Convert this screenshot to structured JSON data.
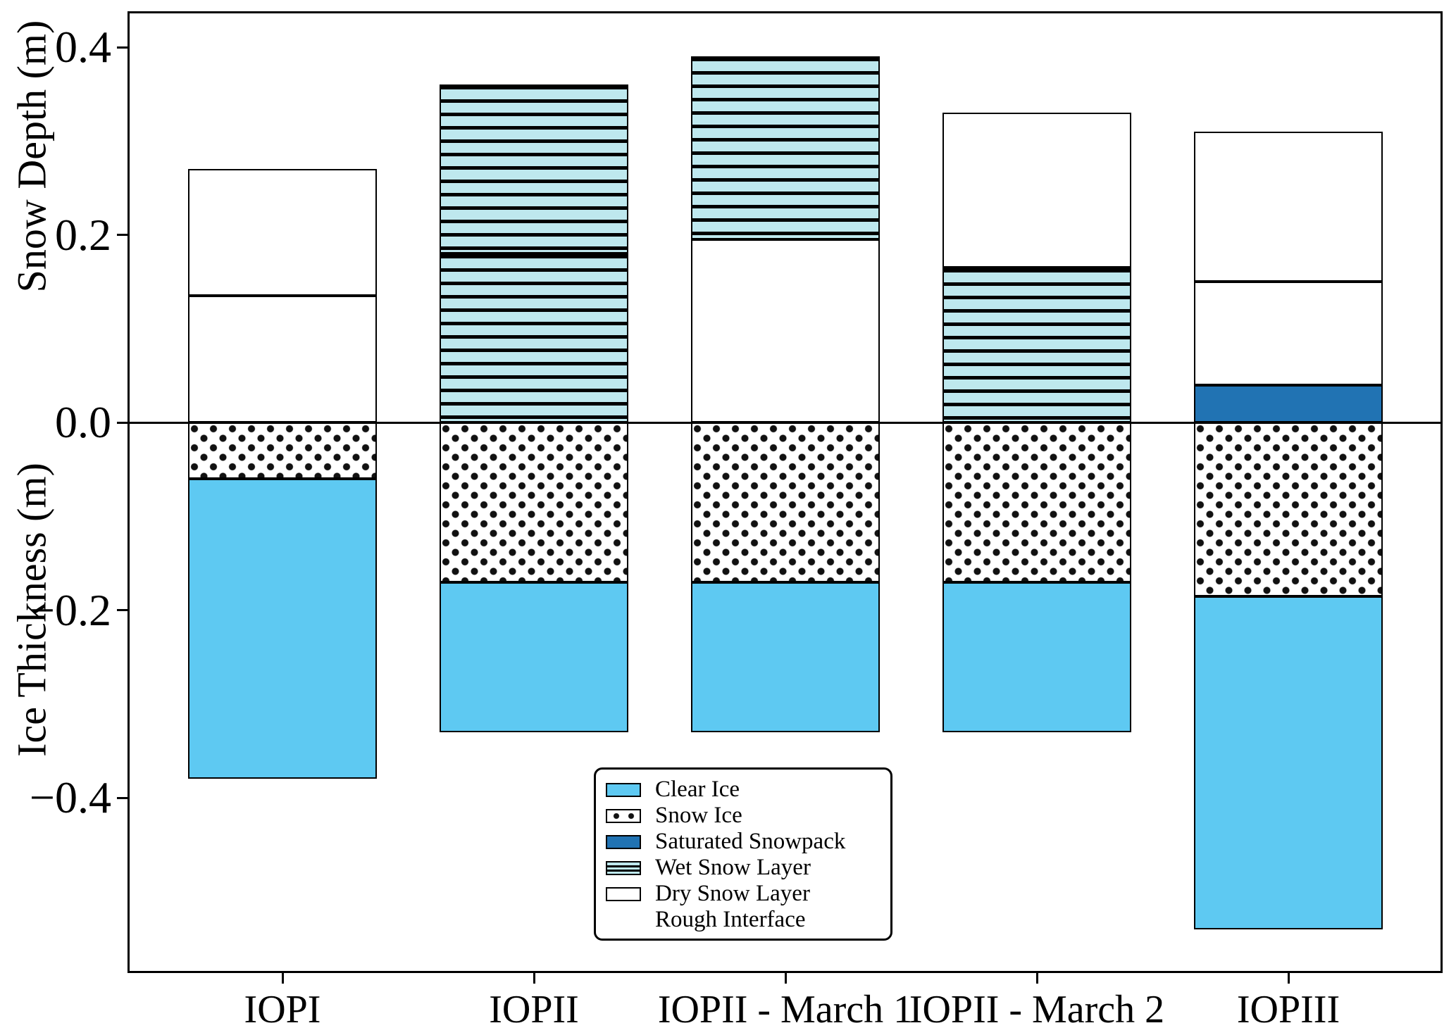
{
  "axes": {
    "y_top_label": "Snow Depth (m)",
    "y_bottom_label": "Ice Thickness (m)",
    "y_ticks": [
      {
        "v": 0.4,
        "label": "0.4"
      },
      {
        "v": 0.2,
        "label": "0.2"
      },
      {
        "v": 0.0,
        "label": "0.0"
      },
      {
        "v": -0.2,
        "label": "−0.2"
      },
      {
        "v": -0.4,
        "label": "−0.4"
      }
    ]
  },
  "legend": {
    "items": [
      {
        "key": "clear_ice",
        "swatch": "patch",
        "label": "Clear Ice"
      },
      {
        "key": "snow_ice",
        "swatch": "patch",
        "label": "Snow Ice"
      },
      {
        "key": "saturated_snowpack",
        "swatch": "patch",
        "label": "Saturated Snowpack"
      },
      {
        "key": "wet_snow",
        "swatch": "patch",
        "label": "Wet Snow Layer"
      },
      {
        "key": "dry_snow",
        "swatch": "patch",
        "label": "Dry Snow Layer"
      },
      {
        "key": "rough",
        "swatch": "line",
        "label": "Rough Interface"
      }
    ]
  },
  "colors": {
    "clear_ice": "#5EC9F2",
    "wet_snow": "#BEE8EE",
    "saturated_snowpack": "#2173B3",
    "dry_snow": "#FFFFFF",
    "snow_ice": "#FFFFFF",
    "rough": "#E01515",
    "line": "#000000"
  },
  "chart_data": {
    "type": "bar",
    "stacked": true,
    "orientation": "vertical",
    "units": "m",
    "ylabel_top": "Snow Depth (m)",
    "ylabel_bottom": "Ice Thickness (m)",
    "ylim": [
      -0.585,
      0.44
    ],
    "yticks": [
      0.4,
      0.2,
      0.0,
      -0.2,
      -0.4
    ],
    "grid": false,
    "legend_position": "lower center-right inside",
    "categories": [
      "IOPI",
      "IOPII",
      "IOPII - March 1",
      "IOPII - March 2",
      "IOPIII"
    ],
    "bars": [
      {
        "category": "IOPI",
        "layers": [
          {
            "type": "dry_snow",
            "from": 0.0,
            "to": 0.135
          },
          {
            "type": "dry_snow",
            "from": 0.135,
            "to": 0.27
          },
          {
            "type": "snow_ice",
            "from": -0.06,
            "to": 0.0
          },
          {
            "type": "clear_ice",
            "from": -0.38,
            "to": -0.06
          }
        ],
        "rough_interfaces": [
          0.27,
          0.135,
          0.0,
          -0.38
        ]
      },
      {
        "category": "IOPII",
        "layers": [
          {
            "type": "wet_snow",
            "from": 0.0,
            "to": 0.18
          },
          {
            "type": "wet_snow",
            "from": 0.18,
            "to": 0.36
          },
          {
            "type": "snow_ice",
            "from": -0.17,
            "to": 0.0
          },
          {
            "type": "clear_ice",
            "from": -0.33,
            "to": -0.17
          }
        ],
        "rough_interfaces": [
          0.36,
          0.18,
          0.0,
          -0.33
        ]
      },
      {
        "category": "IOPII - March 1",
        "layers": [
          {
            "type": "dry_snow",
            "from": 0.0,
            "to": 0.195
          },
          {
            "type": "wet_snow",
            "from": 0.195,
            "to": 0.39
          },
          {
            "type": "snow_ice",
            "from": -0.17,
            "to": 0.0
          },
          {
            "type": "clear_ice",
            "from": -0.33,
            "to": -0.17
          }
        ],
        "rough_interfaces": [
          0.39,
          0.195,
          0.0,
          -0.33
        ]
      },
      {
        "category": "IOPII - March 2",
        "layers": [
          {
            "type": "wet_snow",
            "from": 0.0,
            "to": 0.165
          },
          {
            "type": "dry_snow",
            "from": 0.165,
            "to": 0.33
          },
          {
            "type": "snow_ice",
            "from": -0.17,
            "to": 0.0
          },
          {
            "type": "clear_ice",
            "from": -0.33,
            "to": -0.17
          }
        ],
        "rough_interfaces": [
          0.33,
          0.165,
          0.0,
          -0.33
        ]
      },
      {
        "category": "IOPIII",
        "layers": [
          {
            "type": "saturated_snowpack",
            "from": 0.0,
            "to": 0.04
          },
          {
            "type": "dry_snow",
            "from": 0.04,
            "to": 0.15
          },
          {
            "type": "dry_snow",
            "from": 0.15,
            "to": 0.31
          },
          {
            "type": "snow_ice",
            "from": -0.185,
            "to": 0.0
          },
          {
            "type": "clear_ice",
            "from": -0.54,
            "to": -0.185
          }
        ],
        "rough_interfaces": [
          0.31,
          0.15,
          0.04,
          0.0,
          -0.54
        ]
      }
    ]
  }
}
